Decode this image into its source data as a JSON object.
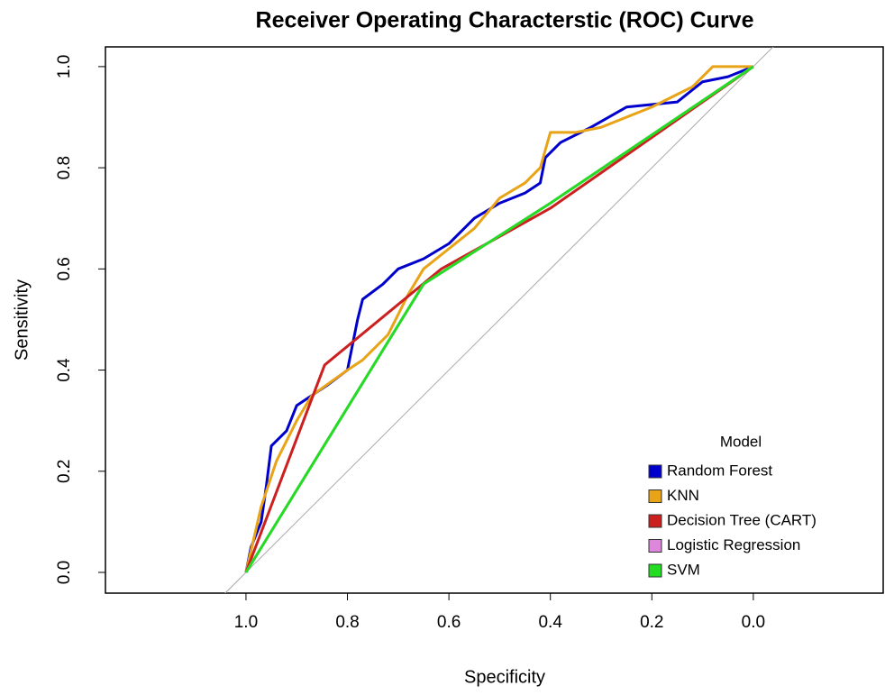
{
  "chart_data": {
    "type": "line",
    "title": "Receiver Operating Characterstic (ROC) Curve",
    "x_label": "Specificity",
    "y_label": "Sensitivity",
    "xlim": [
      1.277,
      -0.256
    ],
    "ylim": [
      -0.041,
      1.039
    ],
    "xticks": [
      {
        "value": 1,
        "label": "1.0"
      },
      {
        "value": 0.8,
        "label": "0.8"
      },
      {
        "value": 0.6,
        "label": "0.6"
      },
      {
        "value": 0.4,
        "label": "0.4"
      },
      {
        "value": 0.2,
        "label": "0.2"
      },
      {
        "value": 0,
        "label": "0.0"
      }
    ],
    "yticks": [
      {
        "value": 0,
        "label": "0.0"
      },
      {
        "value": 0.2,
        "label": "0.2"
      },
      {
        "value": 0.4,
        "label": "0.4"
      },
      {
        "value": 0.6,
        "label": "0.6"
      },
      {
        "value": 0.8,
        "label": "0.8"
      },
      {
        "value": 1,
        "label": "1.0"
      }
    ],
    "legend_title": "Model",
    "legend_position": "bottom-right",
    "series": [
      {
        "name": "Random Forest",
        "color": "#0000cd",
        "x": [
          1,
          0.99,
          0.97,
          0.96,
          0.95,
          0.92,
          0.9,
          0.87,
          0.84,
          0.8,
          0.78,
          0.77,
          0.73,
          0.7,
          0.65,
          0.6,
          0.55,
          0.5,
          0.45,
          0.42,
          0.41,
          0.38,
          0.32,
          0.25,
          0.15,
          0.1,
          0.05,
          0
        ],
        "values": [
          0,
          0.05,
          0.1,
          0.17,
          0.25,
          0.28,
          0.33,
          0.35,
          0.37,
          0.4,
          0.5,
          0.54,
          0.57,
          0.6,
          0.62,
          0.65,
          0.7,
          0.73,
          0.75,
          0.77,
          0.82,
          0.85,
          0.88,
          0.92,
          0.93,
          0.97,
          0.98,
          1
        ]
      },
      {
        "name": "KNN",
        "color": "#e8a317",
        "x": [
          1,
          0.97,
          0.94,
          0.9,
          0.87,
          0.8,
          0.77,
          0.72,
          0.68,
          0.65,
          0.6,
          0.55,
          0.5,
          0.45,
          0.42,
          0.4,
          0.35,
          0.3,
          0.2,
          0.12,
          0.08,
          0
        ],
        "values": [
          0,
          0.13,
          0.22,
          0.3,
          0.35,
          0.4,
          0.42,
          0.47,
          0.55,
          0.6,
          0.64,
          0.68,
          0.74,
          0.77,
          0.8,
          0.87,
          0.87,
          0.88,
          0.92,
          0.96,
          1,
          1
        ]
      },
      {
        "name": "Decision Tree (CART)",
        "color": "#cc1f1f",
        "x": [
          1,
          0.845,
          0.615,
          0.4,
          0
        ],
        "values": [
          0,
          0.41,
          0.6,
          0.72,
          1
        ]
      },
      {
        "name": "Logistic Regression",
        "color": "#dd88dd",
        "x": [
          1,
          0.65,
          0.4,
          0
        ],
        "values": [
          0,
          0.57,
          0.73,
          1
        ]
      },
      {
        "name": "SVM",
        "color": "#22dd22",
        "x": [
          1,
          0.65,
          0.4,
          0
        ],
        "values": [
          0,
          0.57,
          0.73,
          1
        ]
      }
    ]
  }
}
